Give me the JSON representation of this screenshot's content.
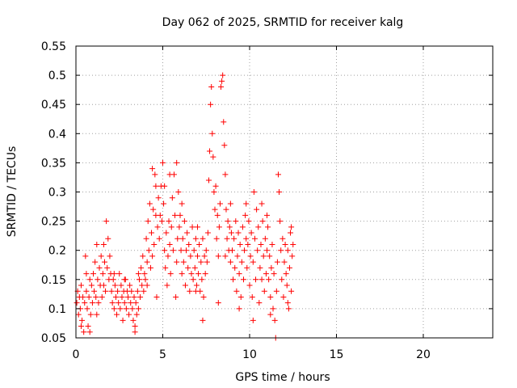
{
  "chart_data": {
    "type": "scatter",
    "title": "Day 062 of 2025, SRMTID for receiver kalg",
    "xlabel": "GPS time / hours",
    "ylabel": "SRMTID / TECUs",
    "xlim": [
      0,
      24
    ],
    "ylim": [
      0.05,
      0.55
    ],
    "xticks": [
      0,
      5,
      10,
      15,
      20
    ],
    "xtick_labels": [
      "0",
      "5",
      "10",
      "15",
      "20"
    ],
    "yticks": [
      0.05,
      0.1,
      0.15,
      0.2,
      0.25,
      0.3,
      0.35,
      0.4,
      0.45,
      0.5,
      0.55
    ],
    "ytick_labels": [
      "0.05",
      "0.1",
      "0.15",
      "0.2",
      "0.25",
      "0.3",
      "0.35",
      "0.4",
      "0.45",
      "0.5",
      "0.55"
    ],
    "grid": true,
    "marker": "+",
    "color": "#ff0000",
    "series": [
      {
        "name": "SRMTID",
        "points": [
          [
            0.05,
            0.11
          ],
          [
            0.1,
            0.13
          ],
          [
            0.15,
            0.09
          ],
          [
            0.2,
            0.12
          ],
          [
            0.25,
            0.1
          ],
          [
            0.3,
            0.14
          ],
          [
            0.35,
            0.08
          ],
          [
            0.4,
            0.12
          ],
          [
            0.45,
            0.06
          ],
          [
            0.5,
            0.11
          ],
          [
            0.55,
            0.19
          ],
          [
            0.6,
            0.13
          ],
          [
            0.65,
            0.1
          ],
          [
            0.7,
            0.07
          ],
          [
            0.75,
            0.12
          ],
          [
            0.8,
            0.15
          ],
          [
            0.85,
            0.09
          ],
          [
            0.9,
            0.14
          ],
          [
            0.95,
            0.11
          ],
          [
            1.0,
            0.16
          ],
          [
            1.05,
            0.13
          ],
          [
            1.1,
            0.18
          ],
          [
            1.15,
            0.12
          ],
          [
            1.2,
            0.21
          ],
          [
            1.25,
            0.15
          ],
          [
            1.3,
            0.11
          ],
          [
            1.35,
            0.17
          ],
          [
            1.4,
            0.14
          ],
          [
            1.45,
            0.19
          ],
          [
            1.5,
            0.12
          ],
          [
            1.55,
            0.16
          ],
          [
            1.6,
            0.14
          ],
          [
            1.65,
            0.18
          ],
          [
            1.7,
            0.13
          ],
          [
            1.75,
            0.25
          ],
          [
            1.8,
            0.17
          ],
          [
            1.85,
            0.22
          ],
          [
            1.9,
            0.15
          ],
          [
            1.95,
            0.19
          ],
          [
            2.0,
            0.16
          ],
          [
            2.05,
            0.13
          ],
          [
            2.1,
            0.11
          ],
          [
            2.15,
            0.15
          ],
          [
            2.2,
            0.1
          ],
          [
            2.25,
            0.14
          ],
          [
            2.3,
            0.12
          ],
          [
            2.35,
            0.09
          ],
          [
            2.4,
            0.13
          ],
          [
            2.45,
            0.11
          ],
          [
            2.5,
            0.16
          ],
          [
            2.55,
            0.1
          ],
          [
            2.6,
            0.14
          ],
          [
            2.65,
            0.12
          ],
          [
            2.7,
            0.08
          ],
          [
            2.75,
            0.13
          ],
          [
            2.8,
            0.11
          ],
          [
            2.85,
            0.15
          ],
          [
            2.9,
            0.1
          ],
          [
            2.95,
            0.13
          ],
          [
            3.0,
            0.12
          ],
          [
            3.05,
            0.09
          ],
          [
            3.1,
            0.14
          ],
          [
            3.15,
            0.11
          ],
          [
            3.2,
            0.13
          ],
          [
            3.25,
            0.1
          ],
          [
            3.3,
            0.08
          ],
          [
            3.35,
            0.12
          ],
          [
            3.4,
            0.07
          ],
          [
            3.45,
            0.11
          ],
          [
            3.5,
            0.09
          ],
          [
            3.55,
            0.13
          ],
          [
            3.6,
            0.1
          ],
          [
            3.65,
            0.15
          ],
          [
            3.7,
            0.12
          ],
          [
            3.75,
            0.17
          ],
          [
            3.8,
            0.14
          ],
          [
            3.85,
            0.19
          ],
          [
            3.9,
            0.13
          ],
          [
            3.95,
            0.16
          ],
          [
            4.0,
            0.15
          ],
          [
            4.05,
            0.22
          ],
          [
            4.1,
            0.18
          ],
          [
            4.15,
            0.25
          ],
          [
            4.2,
            0.2
          ],
          [
            4.25,
            0.28
          ],
          [
            4.3,
            0.17
          ],
          [
            4.35,
            0.23
          ],
          [
            4.4,
            0.19
          ],
          [
            4.45,
            0.27
          ],
          [
            4.5,
            0.21
          ],
          [
            4.55,
            0.33
          ],
          [
            4.6,
            0.26
          ],
          [
            4.65,
            0.12
          ],
          [
            4.7,
            0.24
          ],
          [
            4.75,
            0.29
          ],
          [
            4.8,
            0.22
          ],
          [
            4.85,
            0.26
          ],
          [
            4.9,
            0.31
          ],
          [
            4.95,
            0.25
          ],
          [
            5.0,
            0.35
          ],
          [
            5.05,
            0.28
          ],
          [
            5.1,
            0.2
          ],
          [
            5.15,
            0.17
          ],
          [
            5.2,
            0.23
          ],
          [
            5.25,
            0.14
          ],
          [
            5.3,
            0.19
          ],
          [
            5.35,
            0.25
          ],
          [
            5.4,
            0.21
          ],
          [
            5.45,
            0.16
          ],
          [
            5.5,
            0.24
          ],
          [
            5.55,
            0.29
          ],
          [
            5.6,
            0.2
          ],
          [
            5.65,
            0.33
          ],
          [
            5.7,
            0.26
          ],
          [
            5.75,
            0.12
          ],
          [
            5.8,
            0.18
          ],
          [
            5.85,
            0.22
          ],
          [
            5.9,
            0.3
          ],
          [
            5.95,
            0.24
          ],
          [
            6.0,
            0.26
          ],
          [
            6.05,
            0.2
          ],
          [
            6.1,
            0.16
          ],
          [
            6.15,
            0.22
          ],
          [
            6.2,
            0.18
          ],
          [
            6.25,
            0.25
          ],
          [
            6.3,
            0.14
          ],
          [
            6.35,
            0.2
          ],
          [
            6.4,
            0.23
          ],
          [
            6.45,
            0.17
          ],
          [
            6.5,
            0.21
          ],
          [
            6.55,
            0.13
          ],
          [
            6.6,
            0.19
          ],
          [
            6.65,
            0.16
          ],
          [
            6.7,
            0.24
          ],
          [
            6.75,
            0.15
          ],
          [
            6.8,
            0.2
          ],
          [
            6.85,
            0.17
          ],
          [
            6.9,
            0.22
          ],
          [
            6.95,
            0.14
          ],
          [
            7.0,
            0.19
          ],
          [
            7.05,
            0.16
          ],
          [
            7.1,
            0.21
          ],
          [
            7.15,
            0.13
          ],
          [
            7.2,
            0.18
          ],
          [
            7.25,
            0.15
          ],
          [
            7.3,
            0.22
          ],
          [
            7.35,
            0.12
          ],
          [
            7.4,
            0.19
          ],
          [
            7.45,
            0.16
          ],
          [
            7.5,
            0.2
          ],
          [
            7.55,
            0.18
          ],
          [
            7.6,
            0.23
          ],
          [
            7.65,
            0.32
          ],
          [
            7.7,
            0.37
          ],
          [
            7.75,
            0.45
          ],
          [
            7.8,
            0.48
          ],
          [
            7.85,
            0.4
          ],
          [
            7.9,
            0.36
          ],
          [
            7.95,
            0.3
          ],
          [
            8.0,
            0.27
          ],
          [
            8.05,
            0.31
          ],
          [
            8.1,
            0.22
          ],
          [
            8.15,
            0.26
          ],
          [
            8.2,
            0.19
          ],
          [
            8.25,
            0.24
          ],
          [
            8.3,
            0.28
          ],
          [
            8.35,
            0.48
          ],
          [
            8.4,
            0.49
          ],
          [
            8.45,
            0.5
          ],
          [
            8.5,
            0.42
          ],
          [
            8.55,
            0.38
          ],
          [
            8.6,
            0.33
          ],
          [
            8.65,
            0.27
          ],
          [
            8.7,
            0.22
          ],
          [
            8.75,
            0.25
          ],
          [
            8.8,
            0.2
          ],
          [
            8.85,
            0.24
          ],
          [
            8.9,
            0.18
          ],
          [
            8.95,
            0.23
          ],
          [
            9.0,
            0.2
          ],
          [
            9.05,
            0.15
          ],
          [
            9.1,
            0.22
          ],
          [
            9.15,
            0.17
          ],
          [
            9.2,
            0.25
          ],
          [
            9.25,
            0.13
          ],
          [
            9.3,
            0.19
          ],
          [
            9.35,
            0.23
          ],
          [
            9.4,
            0.16
          ],
          [
            9.45,
            0.21
          ],
          [
            9.5,
            0.12
          ],
          [
            9.55,
            0.18
          ],
          [
            9.6,
            0.24
          ],
          [
            9.65,
            0.15
          ],
          [
            9.7,
            0.2
          ],
          [
            9.75,
            0.26
          ],
          [
            9.8,
            0.22
          ],
          [
            9.85,
            0.17
          ],
          [
            9.9,
            0.21
          ],
          [
            9.95,
            0.25
          ],
          [
            10.0,
            0.14
          ],
          [
            10.05,
            0.19
          ],
          [
            10.1,
            0.23
          ],
          [
            10.15,
            0.12
          ],
          [
            10.2,
            0.18
          ],
          [
            10.25,
            0.3
          ],
          [
            10.3,
            0.22
          ],
          [
            10.35,
            0.15
          ],
          [
            10.4,
            0.27
          ],
          [
            10.45,
            0.2
          ],
          [
            10.5,
            0.24
          ],
          [
            10.55,
            0.11
          ],
          [
            10.6,
            0.17
          ],
          [
            10.65,
            0.21
          ],
          [
            10.7,
            0.15
          ],
          [
            10.75,
            0.25
          ],
          [
            10.8,
            0.19
          ],
          [
            10.85,
            0.13
          ],
          [
            10.9,
            0.22
          ],
          [
            10.95,
            0.16
          ],
          [
            11.0,
            0.2
          ],
          [
            11.05,
            0.24
          ],
          [
            11.1,
            0.15
          ],
          [
            11.15,
            0.19
          ],
          [
            11.2,
            0.12
          ],
          [
            11.25,
            0.17
          ],
          [
            11.3,
            0.21
          ],
          [
            11.35,
            0.1
          ],
          [
            11.4,
            0.16
          ],
          [
            11.45,
            0.08
          ],
          [
            11.5,
            0.05
          ],
          [
            11.55,
            0.13
          ],
          [
            11.6,
            0.18
          ],
          [
            11.65,
            0.33
          ],
          [
            11.7,
            0.3
          ],
          [
            11.75,
            0.25
          ],
          [
            11.8,
            0.2
          ],
          [
            11.85,
            0.15
          ],
          [
            11.9,
            0.22
          ],
          [
            11.95,
            0.12
          ],
          [
            12.0,
            0.18
          ],
          [
            12.05,
            0.21
          ],
          [
            12.1,
            0.16
          ],
          [
            12.15,
            0.14
          ],
          [
            12.2,
            0.2
          ],
          [
            12.25,
            0.1
          ],
          [
            12.3,
            0.17
          ],
          [
            12.35,
            0.23
          ],
          [
            12.4,
            0.13
          ],
          [
            12.45,
            0.19
          ],
          [
            12.5,
            0.21
          ],
          [
            0.3,
            0.07
          ],
          [
            0.8,
            0.06
          ],
          [
            1.2,
            0.09
          ],
          [
            2.2,
            0.16
          ],
          [
            2.8,
            0.15
          ],
          [
            3.4,
            0.06
          ],
          [
            4.1,
            0.14
          ],
          [
            4.6,
            0.31
          ],
          [
            5.1,
            0.31
          ],
          [
            5.4,
            0.33
          ],
          [
            6.1,
            0.28
          ],
          [
            6.9,
            0.13
          ],
          [
            7.3,
            0.08
          ],
          [
            8.2,
            0.11
          ],
          [
            8.9,
            0.28
          ],
          [
            9.4,
            0.1
          ],
          [
            10.2,
            0.08
          ],
          [
            10.7,
            0.28
          ],
          [
            11.2,
            0.09
          ],
          [
            12.2,
            0.11
          ],
          [
            0.6,
            0.16
          ],
          [
            1.6,
            0.21
          ],
          [
            3.6,
            0.16
          ],
          [
            4.4,
            0.34
          ],
          [
            5.8,
            0.35
          ],
          [
            7.0,
            0.24
          ],
          [
            8.6,
            0.19
          ],
          [
            9.8,
            0.28
          ],
          [
            11.0,
            0.26
          ],
          [
            12.4,
            0.24
          ]
        ]
      }
    ]
  }
}
